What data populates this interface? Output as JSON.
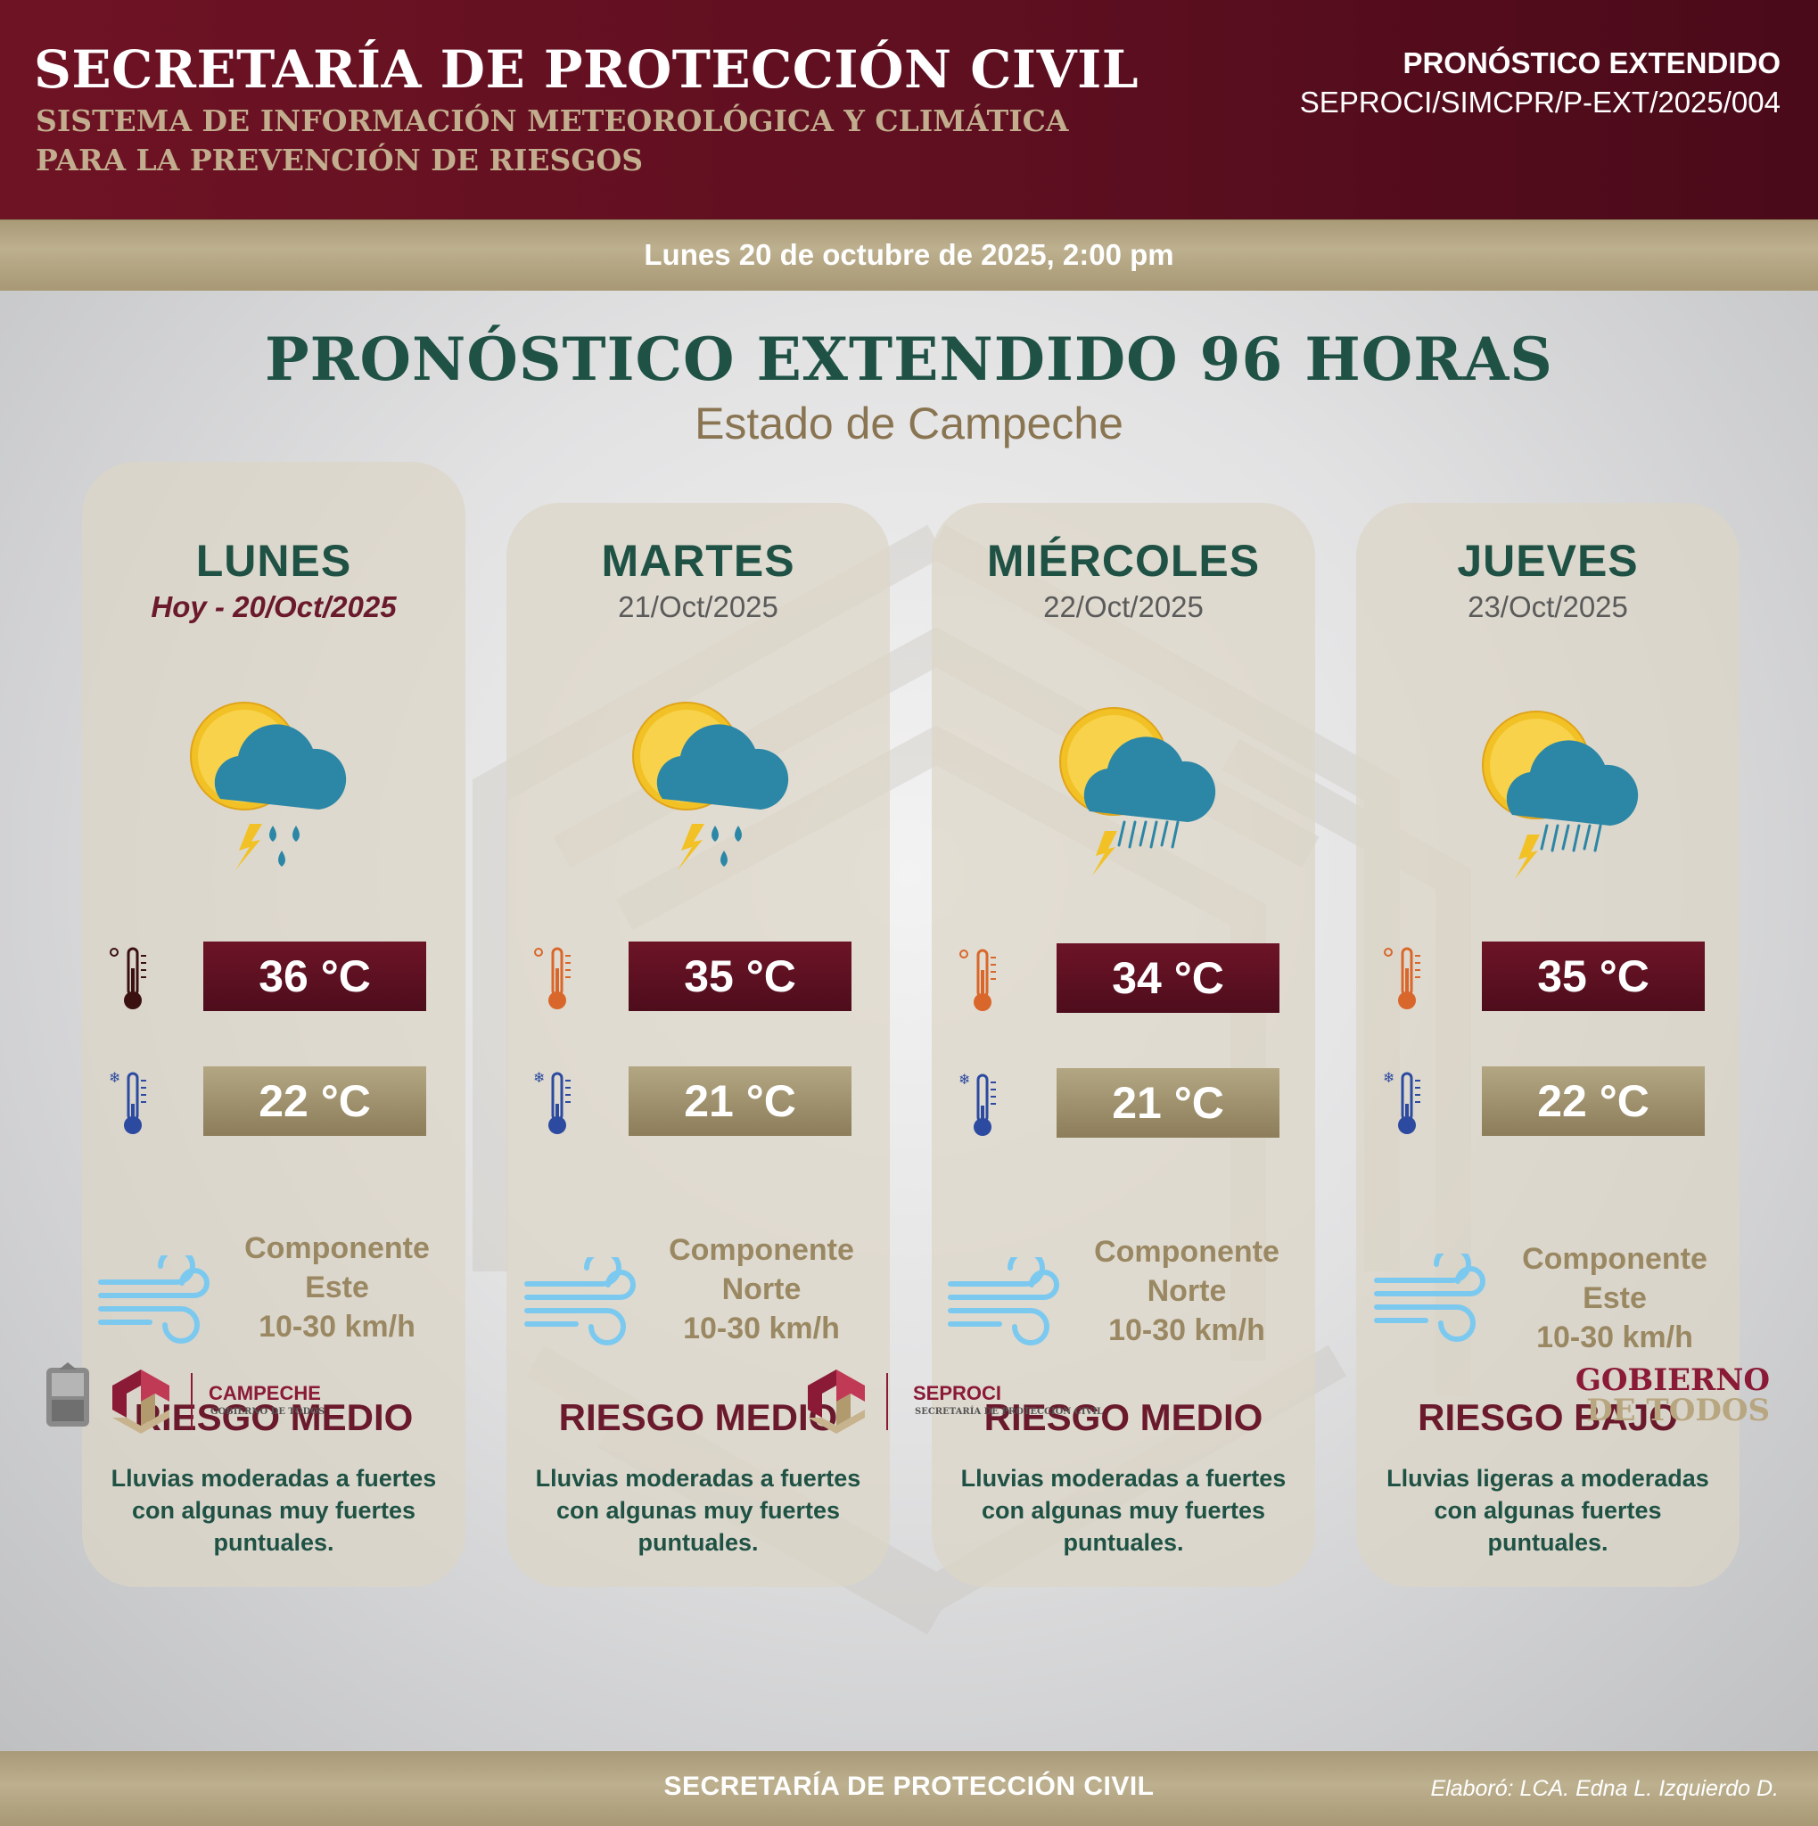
{
  "header": {
    "title": "SECRETARÍA DE PROTECCIÓN CIVIL",
    "subtitle_line1": "SISTEMA DE INFORMACIÓN METEOROLÓGICA Y CLIMÁTICA",
    "subtitle_line2": "PARA LA PREVENCIÓN DE RIESGOS",
    "doc_type": "PRONÓSTICO EXTENDIDO",
    "doc_id": "SEPROCI/SIMCPR/P-EXT/2025/004"
  },
  "issued": "Lunes 20 de octubre de 2025, 2:00 pm",
  "main": {
    "title": "PRONÓSTICO EXTENDIDO 96 HORAS",
    "subtitle": "Estado de Campeche"
  },
  "days": [
    {
      "day": "LUNES",
      "date": "Hoy - 20/Oct/2025",
      "icon": "sun-cloud-storm-drops-icon",
      "tmax": "36 °C",
      "tmin": "22 °C",
      "wind_line1": "Componente",
      "wind_line2": "Este",
      "wind_line3": "10-30 km/h",
      "risk": "RIESGO MEDIO",
      "desc_line1": "Lluvias moderadas a fuertes",
      "desc_line2": "con algunas muy fuertes",
      "desc_line3": "puntuales."
    },
    {
      "day": "MARTES",
      "date": "21/Oct/2025",
      "icon": "sun-cloud-storm-drops-icon",
      "tmax": "35 °C",
      "tmin": "21 °C",
      "wind_line1": "Componente",
      "wind_line2": "Norte",
      "wind_line3": "10-30 km/h",
      "risk": "RIESGO MEDIO",
      "desc_line1": "Lluvias moderadas a fuertes",
      "desc_line2": "con algunas muy fuertes",
      "desc_line3": "puntuales."
    },
    {
      "day": "MIÉRCOLES",
      "date": "22/Oct/2025",
      "icon": "sun-cloud-storm-rain-icon",
      "tmax": "34 °C",
      "tmin": "21 °C",
      "wind_line1": "Componente",
      "wind_line2": "Norte",
      "wind_line3": "10-30 km/h",
      "risk": "RIESGO MEDIO",
      "desc_line1": "Lluvias moderadas a fuertes",
      "desc_line2": "con algunas muy fuertes",
      "desc_line3": "puntuales."
    },
    {
      "day": "JUEVES",
      "date": "23/Oct/2025",
      "icon": "sun-cloud-storm-rain-icon",
      "tmax": "35 °C",
      "tmin": "22 °C",
      "wind_line1": "Componente",
      "wind_line2": "Este",
      "wind_line3": "10-30 km/h",
      "risk": "RIESGO BAJO",
      "desc_line1": "Lluvias ligeras a moderadas",
      "desc_line2": "con algunas fuertes",
      "desc_line3": "puntuales."
    }
  ],
  "logos": {
    "campeche_name": "CAMPECHE",
    "campeche_tag": "GOBIERNO DE TODOS",
    "seproci_name": "SEPROCI",
    "seproci_tag": "SECRETARÍA DE PROTECCIÓN CIVIL",
    "gob_line1": "GOBIERNO",
    "gob_line2": "DE TODOS"
  },
  "footer": {
    "center": "SECRETARÍA DE PROTECCIÓN CIVIL",
    "author": "Elaboró: LCA. Edna L. Izquierdo D."
  },
  "colors": {
    "header_bg": "#5e0f20",
    "gold_band": "#b3a583",
    "title_green": "#1f5245",
    "risk_maroon": "#6a1a2c",
    "tmax_box": "#5e1122",
    "tmin_box": "#a09271",
    "wind_blue": "#7cc9f0",
    "cloud_teal": "#2c86a6",
    "sun_yellow": "#f2c126"
  }
}
